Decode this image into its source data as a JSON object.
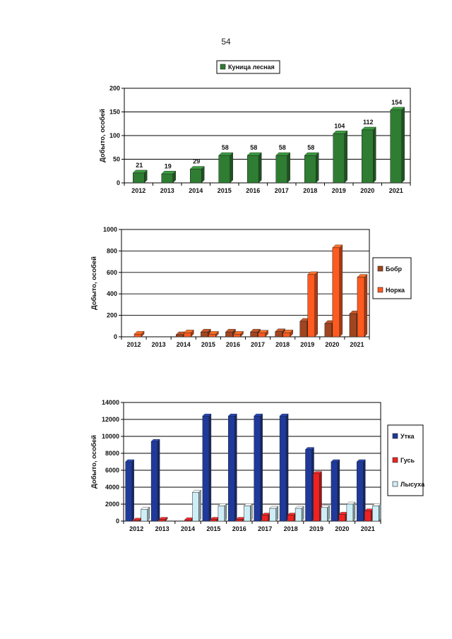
{
  "page": {
    "number": "54"
  },
  "chart_data": [
    {
      "type": "bar",
      "title": "",
      "categories": [
        "2012",
        "2013",
        "2014",
        "2015",
        "2016",
        "2017",
        "2018",
        "2019",
        "2020",
        "2021"
      ],
      "series": [
        {
          "name": "Куница лесная",
          "values": [
            21,
            19,
            29,
            58,
            58,
            58,
            58,
            104,
            112,
            154
          ],
          "color": "#2e7d32"
        }
      ],
      "show_data_labels": true,
      "ylabel": "Добыто, особей",
      "xlabel": "",
      "ylim": [
        0,
        200
      ],
      "yticks": [
        0,
        50,
        100,
        150,
        200
      ],
      "grid": true,
      "legend": "top"
    },
    {
      "type": "bar",
      "title": "",
      "categories": [
        "2012",
        "2013",
        "2014",
        "2015",
        "2016",
        "2017",
        "2018",
        "2019",
        "2020",
        "2021"
      ],
      "series": [
        {
          "name": "Бобр",
          "values": [
            0,
            0,
            20,
            45,
            45,
            45,
            48,
            145,
            125,
            215
          ],
          "color": "#a0451f"
        },
        {
          "name": "Норка",
          "values": [
            25,
            0,
            38,
            25,
            25,
            35,
            38,
            580,
            830,
            555
          ],
          "color": "#ff5a1f"
        }
      ],
      "show_data_labels": false,
      "ylabel": "Добыто, особей",
      "xlabel": "",
      "ylim": [
        0,
        1000
      ],
      "yticks": [
        0,
        200,
        400,
        600,
        800,
        1000
      ],
      "grid": true,
      "legend": "right"
    },
    {
      "type": "bar",
      "title": "",
      "categories": [
        "2012",
        "2013",
        "2014",
        "2015",
        "2016",
        "2017",
        "2018",
        "2019",
        "2020",
        "2021"
      ],
      "series": [
        {
          "name": "Утка",
          "values": [
            7000,
            9400,
            0,
            12400,
            12400,
            12400,
            12400,
            8450,
            7000,
            7000
          ],
          "color": "#1f3a9b"
        },
        {
          "name": "Гусь",
          "values": [
            100,
            200,
            150,
            200,
            200,
            700,
            700,
            5600,
            800,
            1200
          ],
          "color": "#ee2222"
        },
        {
          "name": "Лысуха",
          "values": [
            1400,
            0,
            3400,
            1800,
            1800,
            1500,
            1500,
            1600,
            2000,
            1800
          ],
          "color": "#cdeef6"
        }
      ],
      "show_data_labels": false,
      "ylabel": "Добыто, особей",
      "xlabel": "",
      "ylim": [
        0,
        14000
      ],
      "yticks": [
        0,
        2000,
        4000,
        6000,
        8000,
        10000,
        12000,
        14000
      ],
      "grid": true,
      "legend": "right"
    }
  ]
}
